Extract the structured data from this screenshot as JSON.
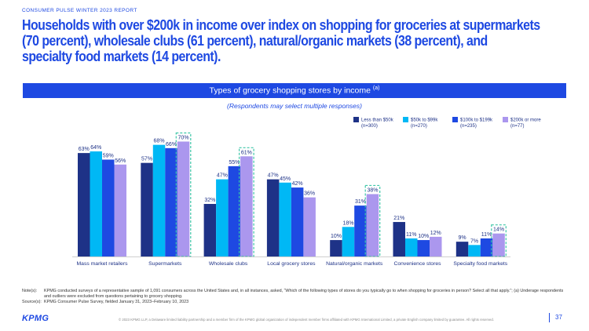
{
  "report": {
    "kicker": "CONSUMER PULSE WINTER 2023 REPORT"
  },
  "headline": {
    "line1": "Households with over $200k in income over index on shopping for groceries at supermarkets",
    "line2": "(70 percent), wholesale clubs (61 percent), natural/organic markets (38 percent), and",
    "line3": "specialty food markets (14 percent)."
  },
  "chart_data": {
    "type": "bar",
    "title": "Types of grocery shopping stores by income",
    "title_note": "(a)",
    "subtitle": "(Respondents may select multiple responses)",
    "categories": [
      "Mass market retailers",
      "Supermarkets",
      "Wholesale clubs",
      "Local grocery stores",
      "Natural/organic markets",
      "Convenience stores",
      "Specialty food markets"
    ],
    "series": [
      {
        "name": "Less than $50k",
        "n": "(n=300)",
        "color": "#1e3287",
        "values": [
          63,
          57,
          32,
          47,
          10,
          21,
          9
        ]
      },
      {
        "name": "$50k to $99k",
        "n": "(n=270)",
        "color": "#00b8f5",
        "values": [
          64,
          68,
          47,
          45,
          18,
          11,
          7
        ]
      },
      {
        "name": "$100k to $199k",
        "n": "(n=235)",
        "color": "#1e49e2",
        "values": [
          59,
          66,
          55,
          42,
          31,
          10,
          11
        ]
      },
      {
        "name": "$200k or more",
        "n": "(n=77)",
        "color": "#ab97ee",
        "values": [
          56,
          70,
          61,
          36,
          38,
          12,
          14
        ]
      }
    ],
    "value_suffix": "%",
    "highlighted_series": "$200k or more",
    "highlighted_categories": [
      "Supermarkets",
      "Wholesale clubs",
      "Natural/organic markets",
      "Specialty food markets"
    ],
    "highlight_color": "#3ec6a8",
    "ylim": [
      0,
      75
    ],
    "grid": false,
    "legend_position": "top-right"
  },
  "notes": {
    "note_label": "Note(s):",
    "note_text": "KPMG conducted surveys of a representative sample of 1,091 consumers across the United States and, in all instances, asked, “Which of the following types of stores do you typically go to when shopping for groceries in person? Select all that apply.”; (a) Underage respondents and outliers were excluded from questions pertaining to grocery shopping.",
    "source_label": "Source(s):",
    "source_text": "KPMG Consumer Pulse Survey, fielded January 31, 2023–February 10, 2023"
  },
  "footer": {
    "logo": "KPMG",
    "legal": "© 2023 KPMG LLP, a Delaware limited liability partnership and a member firm of the KPMG global organization of independent member firms affiliated with KPMG International Limited, a private English company limited by guarantee. All rights reserved.",
    "page": "37"
  }
}
